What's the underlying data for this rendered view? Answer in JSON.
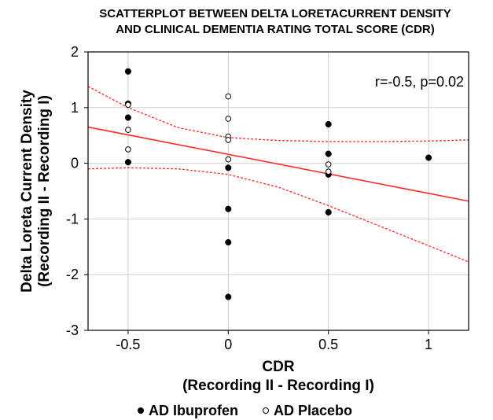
{
  "chart_data": {
    "type": "scatter",
    "title": "SCATTERPLOT BETWEEN DELTA LORETACURRENT DENSITY",
    "subtitle": "AND CLINICAL DEMENTIA RATING TOTAL SCORE (CDR)",
    "xlabel": "CDR",
    "xlabel2": "(Recording II - Recording I)",
    "ylabel": "Delta Loreta Current Density",
    "ylabel2": "(Recording II - Recording I)",
    "xlim": [
      -0.7,
      1.2
    ],
    "ylim": [
      -3,
      2
    ],
    "x_ticks": [
      "-0.5",
      "0",
      "0.5",
      "1"
    ],
    "x_tick_values": [
      -0.5,
      0,
      0.5,
      1
    ],
    "y_ticks": [
      "2",
      "1",
      "0",
      "-1",
      "-2",
      "-3"
    ],
    "y_tick_values": [
      2,
      1,
      0,
      -1,
      -2,
      -3
    ],
    "grid": true,
    "annotation": "r=-0.5, p=0.02",
    "legend_placement": "bottom",
    "series": [
      {
        "name": "AD Ibuprofen",
        "marker": "filled-circle",
        "x": [
          -0.5,
          -0.5,
          -0.5,
          -0.5,
          0,
          0,
          0,
          0,
          0.5,
          0.5,
          0.5,
          0.5,
          1
        ],
        "y": [
          1.65,
          1.07,
          0.82,
          0.02,
          -0.08,
          -0.82,
          -1.42,
          -2.4,
          0.7,
          0.17,
          -0.2,
          -0.88,
          0.1
        ]
      },
      {
        "name": "AD Placebo",
        "marker": "open-circle",
        "x": [
          -0.5,
          -0.5,
          -0.5,
          0,
          0,
          0,
          0,
          0,
          0.5,
          0.5
        ],
        "y": [
          1.05,
          0.6,
          0.25,
          1.2,
          0.8,
          0.48,
          0.42,
          0.07,
          -0.02,
          -0.15
        ]
      }
    ],
    "regression_line": {
      "x": [
        -0.7,
        1.2
      ],
      "y": [
        0.65,
        -0.68
      ],
      "color": "#ff2a2a"
    },
    "confidence_band": {
      "color": "#ff2a2a",
      "x": [
        -0.7,
        -0.5,
        -0.25,
        0,
        0.25,
        0.5,
        0.75,
        1.0,
        1.2
      ],
      "upper": [
        1.38,
        1.0,
        0.64,
        0.46,
        0.41,
        0.39,
        0.39,
        0.4,
        0.42
      ],
      "lower": [
        -0.1,
        -0.08,
        -0.1,
        -0.2,
        -0.43,
        -0.76,
        -1.12,
        -1.48,
        -1.77
      ]
    }
  }
}
